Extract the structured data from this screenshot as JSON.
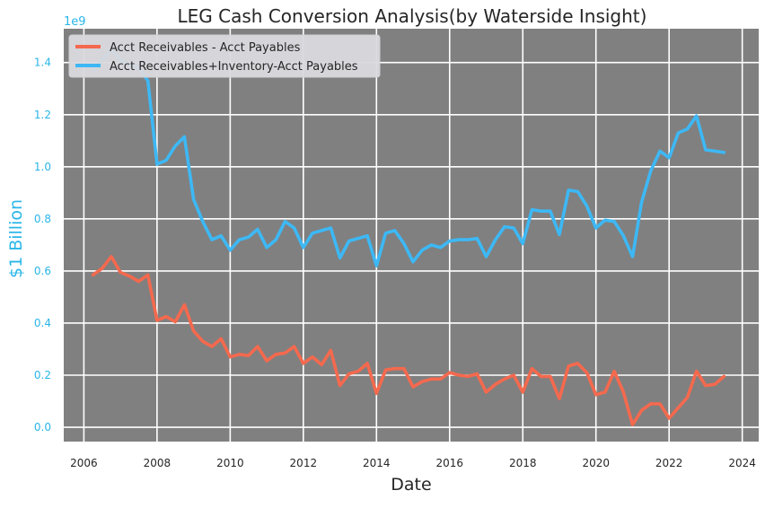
{
  "chart_data": {
    "type": "line",
    "title": "LEG Cash Conversion Analysis(by Waterside Insight)",
    "xlabel": "Date",
    "ylabel": "$1 Billion",
    "y_offset_label": "1e9",
    "xlim": [
      2005.45,
      2024.45
    ],
    "ylim": [
      -0.055,
      1.53
    ],
    "x_ticks": [
      2006,
      2008,
      2010,
      2012,
      2014,
      2016,
      2018,
      2020,
      2022,
      2024
    ],
    "y_ticks": [
      "0.0",
      "0.2",
      "0.4",
      "0.6",
      "0.8",
      "1.0",
      "1.2",
      "1.4"
    ],
    "legend_position": "top-left",
    "grid": true,
    "background": "#808080",
    "series": [
      {
        "name": "Acct Receivables - Acct Payables",
        "color": "#f4694e",
        "x": [
          2006.25,
          2006.5,
          2006.75,
          2007.0,
          2007.25,
          2007.5,
          2007.75,
          2008.0,
          2008.25,
          2008.5,
          2008.75,
          2009.0,
          2009.25,
          2009.5,
          2009.75,
          2010.0,
          2010.25,
          2010.5,
          2010.75,
          2011.0,
          2011.25,
          2011.5,
          2011.75,
          2012.0,
          2012.25,
          2012.5,
          2012.75,
          2013.0,
          2013.25,
          2013.5,
          2013.75,
          2014.0,
          2014.25,
          2014.5,
          2014.75,
          2015.0,
          2015.25,
          2015.5,
          2015.75,
          2016.0,
          2016.25,
          2016.5,
          2016.75,
          2017.0,
          2017.25,
          2017.5,
          2017.75,
          2018.0,
          2018.25,
          2018.5,
          2018.75,
          2019.0,
          2019.25,
          2019.5,
          2019.75,
          2020.0,
          2020.25,
          2020.5,
          2020.75,
          2021.0,
          2021.25,
          2021.5,
          2021.75,
          2022.0,
          2022.25,
          2022.5,
          2022.75,
          2023.0,
          2023.25,
          2023.5
        ],
        "values": [
          0.585,
          0.61,
          0.655,
          0.595,
          0.58,
          0.56,
          0.585,
          0.41,
          0.425,
          0.405,
          0.47,
          0.37,
          0.33,
          0.31,
          0.34,
          0.27,
          0.28,
          0.275,
          0.31,
          0.255,
          0.28,
          0.285,
          0.31,
          0.245,
          0.27,
          0.24,
          0.295,
          0.16,
          0.205,
          0.215,
          0.245,
          0.13,
          0.22,
          0.225,
          0.225,
          0.155,
          0.175,
          0.185,
          0.185,
          0.21,
          0.2,
          0.195,
          0.205,
          0.135,
          0.165,
          0.185,
          0.2,
          0.135,
          0.225,
          0.195,
          0.195,
          0.11,
          0.235,
          0.245,
          0.21,
          0.125,
          0.135,
          0.215,
          0.135,
          0.01,
          0.065,
          0.09,
          0.09,
          0.035,
          0.075,
          0.115,
          0.215,
          0.16,
          0.165,
          0.195
        ]
      },
      {
        "name": "Acct Receivables+Inventory-Acct Payables",
        "color": "#3db8f5",
        "x": [
          2006.25,
          2006.5,
          2006.75,
          2007.0,
          2007.25,
          2007.5,
          2007.75,
          2008.0,
          2008.25,
          2008.5,
          2008.75,
          2009.0,
          2009.25,
          2009.5,
          2009.75,
          2010.0,
          2010.25,
          2010.5,
          2010.75,
          2011.0,
          2011.25,
          2011.5,
          2011.75,
          2012.0,
          2012.25,
          2012.5,
          2012.75,
          2013.0,
          2013.25,
          2013.5,
          2013.75,
          2014.0,
          2014.25,
          2014.5,
          2014.75,
          2015.0,
          2015.25,
          2015.5,
          2015.75,
          2016.0,
          2016.25,
          2016.5,
          2016.75,
          2017.0,
          2017.25,
          2017.5,
          2017.75,
          2018.0,
          2018.25,
          2018.5,
          2018.75,
          2019.0,
          2019.25,
          2019.5,
          2019.75,
          2020.0,
          2020.25,
          2020.5,
          2020.75,
          2021.0,
          2021.25,
          2021.5,
          2021.75,
          2022.0,
          2022.25,
          2022.5,
          2022.75,
          2023.0,
          2023.25,
          2023.5
        ],
        "values": [
          1.37,
          1.41,
          1.45,
          1.41,
          1.39,
          1.38,
          1.33,
          1.01,
          1.025,
          1.08,
          1.115,
          0.875,
          0.79,
          0.72,
          0.735,
          0.68,
          0.72,
          0.73,
          0.76,
          0.69,
          0.72,
          0.79,
          0.765,
          0.69,
          0.745,
          0.755,
          0.765,
          0.65,
          0.715,
          0.725,
          0.735,
          0.62,
          0.745,
          0.755,
          0.705,
          0.635,
          0.68,
          0.7,
          0.69,
          0.715,
          0.72,
          0.72,
          0.725,
          0.655,
          0.72,
          0.77,
          0.765,
          0.705,
          0.835,
          0.83,
          0.83,
          0.74,
          0.91,
          0.905,
          0.85,
          0.765,
          0.795,
          0.79,
          0.735,
          0.655,
          0.865,
          0.985,
          1.06,
          1.035,
          1.13,
          1.145,
          1.195,
          1.065,
          1.06,
          1.055
        ]
      }
    ]
  }
}
